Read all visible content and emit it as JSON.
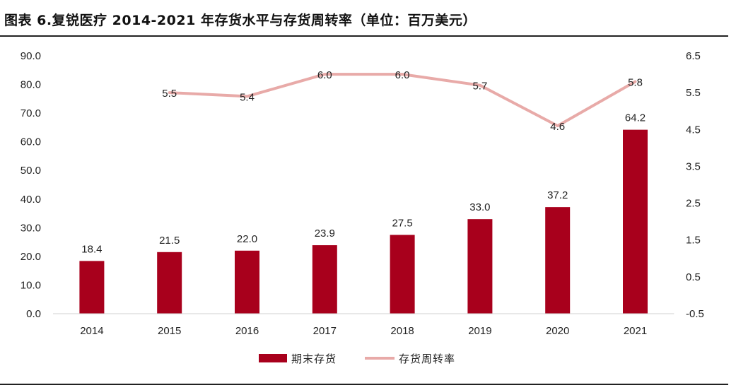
{
  "title": "图表 6.复锐医疗 2014-2021 年存货水平与存货周转率（单位：百万美元）",
  "colors": {
    "bar": "#a8001c",
    "line": "#e8aaa8",
    "text": "#222222"
  },
  "chart_data": {
    "type": "bar+line",
    "categories": [
      "2014",
      "2015",
      "2016",
      "2017",
      "2018",
      "2019",
      "2020",
      "2021"
    ],
    "series": [
      {
        "name": "期末存货",
        "type": "bar",
        "axis": "left",
        "values": [
          18.4,
          21.5,
          22.0,
          23.9,
          27.5,
          33.0,
          37.2,
          64.2
        ],
        "labels": [
          "18.4",
          "21.5",
          "22.0",
          "23.9",
          "27.5",
          "33.0",
          "37.2",
          "64.2"
        ]
      },
      {
        "name": "存货周转率",
        "type": "line",
        "axis": "right",
        "values": [
          null,
          5.5,
          5.4,
          6.0,
          6.0,
          5.7,
          4.6,
          5.8
        ],
        "labels": [
          null,
          "5.5",
          "5.4",
          "6.0",
          "6.0",
          "5.7",
          "4.6",
          "5.8"
        ]
      }
    ],
    "y_left": {
      "min": 0,
      "max": 90,
      "ticks": [
        0,
        10,
        20,
        30,
        40,
        50,
        60,
        70,
        80,
        90
      ],
      "tick_labels": [
        "0.0",
        "10.0",
        "20.0",
        "30.0",
        "40.0",
        "50.0",
        "60.0",
        "70.0",
        "80.0",
        "90.0"
      ]
    },
    "y_right": {
      "min": -0.5,
      "max": 6.5,
      "ticks": [
        -0.5,
        0.5,
        1.5,
        2.5,
        3.5,
        4.5,
        5.5,
        6.5
      ],
      "tick_labels": [
        "-0.5",
        "0.5",
        "1.5",
        "2.5",
        "3.5",
        "4.5",
        "5.5",
        "6.5"
      ]
    },
    "grid": false,
    "legend": {
      "position": "bottom-center",
      "items": [
        "期末存货",
        "存货周转率"
      ]
    }
  }
}
